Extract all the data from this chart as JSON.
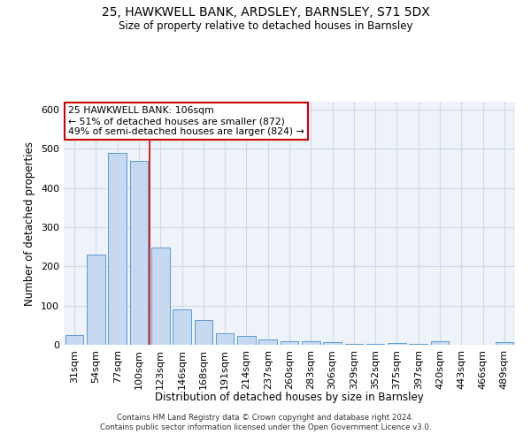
{
  "title1": "25, HAWKWELL BANK, ARDSLEY, BARNSLEY, S71 5DX",
  "title2": "Size of property relative to detached houses in Barnsley",
  "xlabel": "Distribution of detached houses by size in Barnsley",
  "ylabel": "Number of detached properties",
  "categories": [
    "31sqm",
    "54sqm",
    "77sqm",
    "100sqm",
    "123sqm",
    "146sqm",
    "168sqm",
    "191sqm",
    "214sqm",
    "237sqm",
    "260sqm",
    "283sqm",
    "306sqm",
    "329sqm",
    "352sqm",
    "375sqm",
    "397sqm",
    "420sqm",
    "443sqm",
    "466sqm",
    "489sqm"
  ],
  "values": [
    25,
    230,
    490,
    470,
    248,
    90,
    63,
    30,
    23,
    13,
    10,
    10,
    7,
    3,
    3,
    5,
    3,
    8,
    1,
    1,
    6
  ],
  "bar_color": "#c6d9f0",
  "bar_edge_color": "#5b9bd5",
  "grid_color": "#d0d8e8",
  "background_color": "#eef2f9",
  "red_line_x": 3.5,
  "annotation_text": "25 HAWKWELL BANK: 106sqm\n← 51% of detached houses are smaller (872)\n49% of semi-detached houses are larger (824) →",
  "annotation_box_color": "#ffffff",
  "annotation_box_edge": "#cc0000",
  "ylim": [
    0,
    620
  ],
  "footer_text": "Contains HM Land Registry data © Crown copyright and database right 2024.\nContains public sector information licensed under the Open Government Licence v3.0."
}
